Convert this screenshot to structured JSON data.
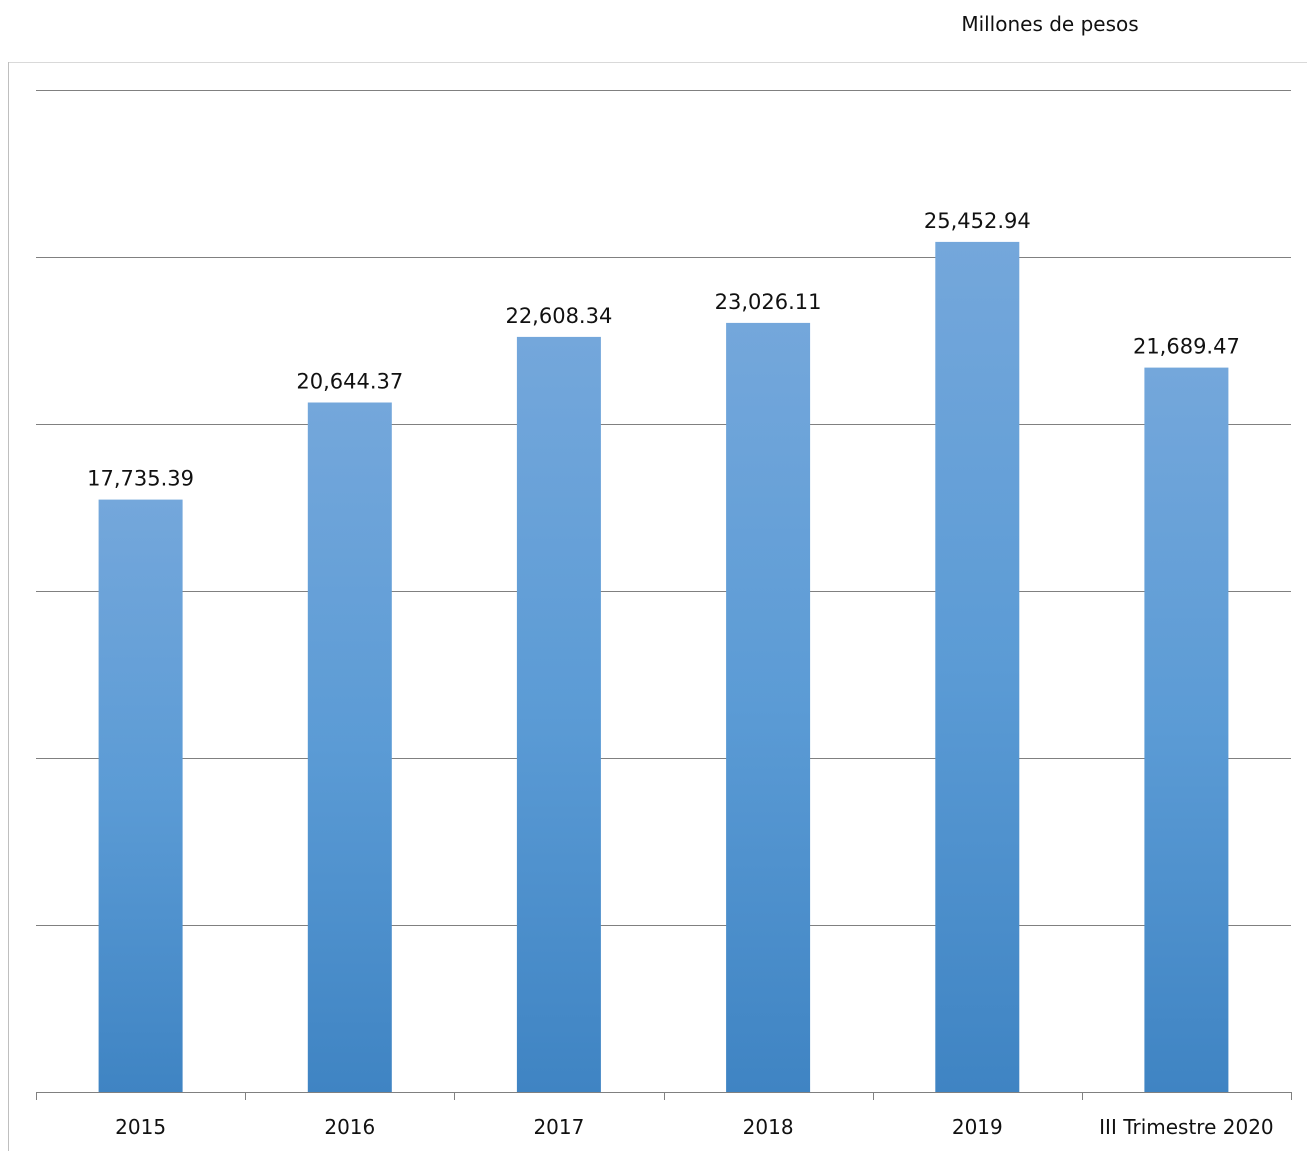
{
  "unit_label": "Millones de pesos",
  "chart_data": {
    "type": "bar",
    "categories": [
      "2015",
      "2016",
      "2017",
      "2018",
      "2019",
      "III Trimestre 2020"
    ],
    "values": [
      17735.39,
      20644.37,
      22608.34,
      23026.11,
      25452.94,
      21689.47
    ],
    "data_labels": [
      "17,735.39",
      "20,644.37",
      "22,608.34",
      "23,026.11",
      "25,452.94",
      "21,689.47"
    ],
    "title": "",
    "xlabel": "",
    "ylabel": "",
    "ylim": [
      0,
      30000
    ],
    "gridline_step": 5000,
    "grid": true,
    "legend": "none",
    "colors": {
      "bar_top": "#74a7db",
      "bar_mid": "#5b9bd5",
      "bar_bottom": "#3f84c3",
      "grid": "#808080",
      "axis": "#808080",
      "text": "#111111"
    }
  }
}
